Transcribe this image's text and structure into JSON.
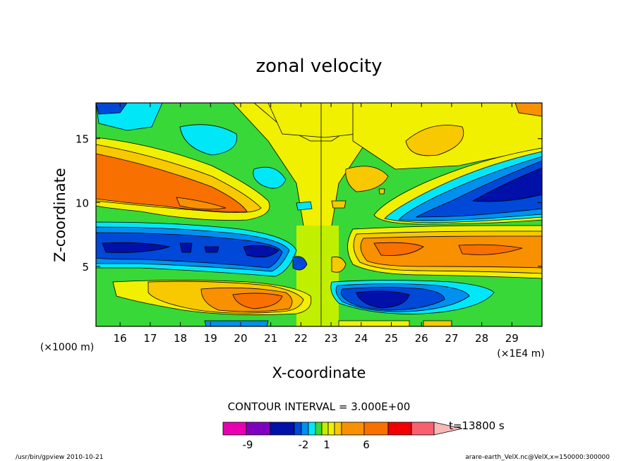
{
  "chart_data": {
    "type": "heatmap",
    "title": "zonal velocity",
    "xlabel": "X-coordinate",
    "ylabel": "Z-coordinate",
    "x_units_note": "(×1E4 m)",
    "y_units_note": "(×1000 m)",
    "xlim": [
      15.2,
      30.0
    ],
    "ylim": [
      0.3,
      17.8
    ],
    "x_ticks": [
      "16",
      "17",
      "18",
      "19",
      "20",
      "21",
      "22",
      "23",
      "24",
      "25",
      "26",
      "27",
      "28",
      "29"
    ],
    "y_ticks": [
      "5",
      "10",
      "15"
    ],
    "contour_interval": "CONTOUR INTERVAL = 3.000E+00",
    "time_label": "t=13800 s",
    "colorbar": {
      "labels": [
        "-9",
        "-2",
        "1",
        "6"
      ],
      "colors": [
        "#e800b0",
        "#8000c0",
        "#0010a8",
        "#0048d8",
        "#0090f0",
        "#00e8f8",
        "#38d838",
        "#c0f000",
        "#f0f000",
        "#f8c800",
        "#f89000",
        "#f87000",
        "#f00000",
        "#f86070",
        "#f8b8b8"
      ]
    },
    "field_features": [
      {
        "desc": "orange band upper-left",
        "x_center": 17.5,
        "z_center": 10.5,
        "sign": "+"
      },
      {
        "desc": "blue band mid-left",
        "x_center": 19.5,
        "z_center": 6.2,
        "sign": "-"
      },
      {
        "desc": "orange band low-left",
        "x_center": 20.2,
        "z_center": 2.5,
        "sign": "+"
      },
      {
        "desc": "blue band upper-right",
        "x_center": 28.0,
        "z_center": 10.0,
        "sign": "-"
      },
      {
        "desc": "orange band mid-right",
        "x_center": 25.5,
        "z_center": 6.0,
        "sign": "+"
      },
      {
        "desc": "blue band low-right",
        "x_center": 24.6,
        "z_center": 2.3,
        "sign": "-"
      }
    ]
  },
  "footer": {
    "left": "/usr/bin/gpview   2010-10-21",
    "right": "arare-earth_VelX.nc@VelX,x=150000:300000"
  }
}
